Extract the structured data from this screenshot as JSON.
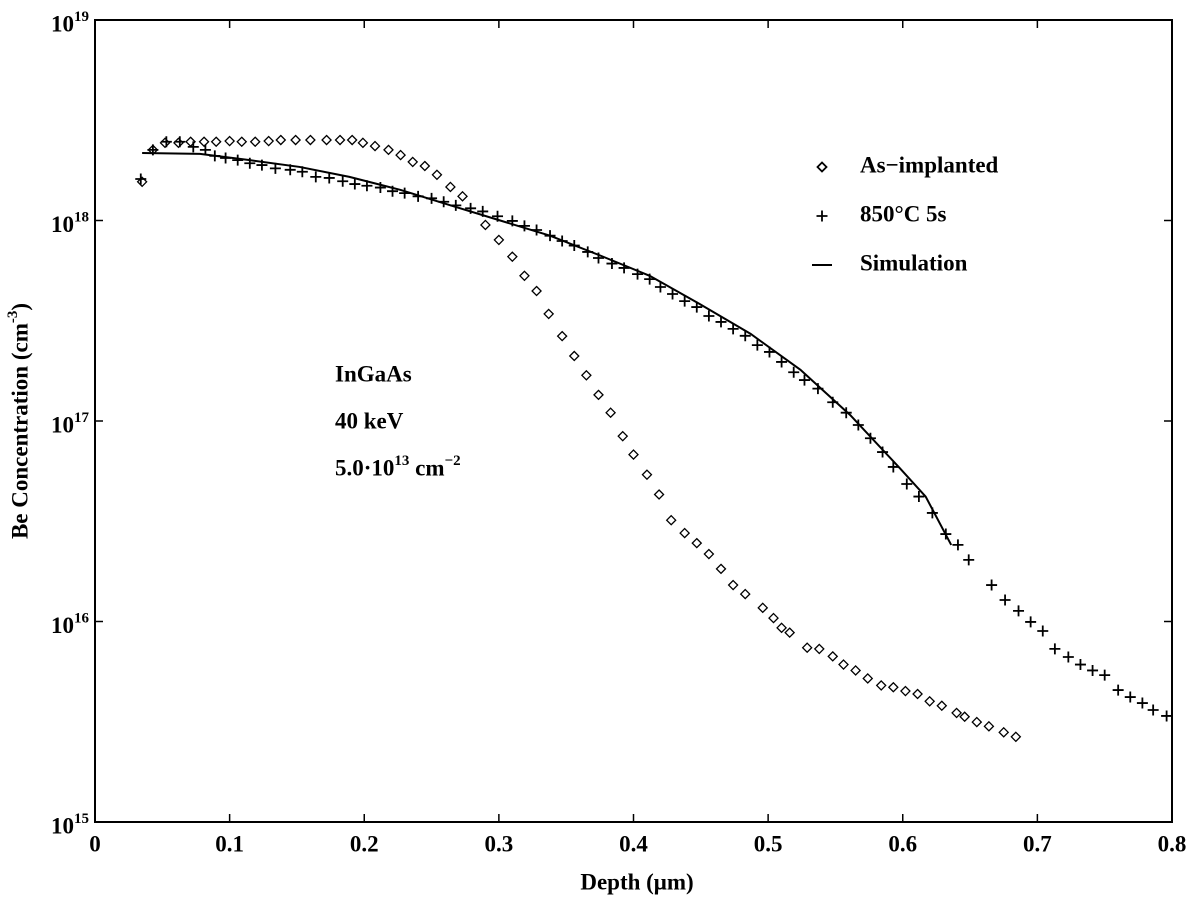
{
  "chart_data": {
    "type": "scatter",
    "xlabel": "Depth (μm)",
    "ylabel": "Be Concentration (cm^-3)",
    "xlim": [
      0,
      0.8
    ],
    "xticks": [
      0,
      0.1,
      0.2,
      0.3,
      0.4,
      0.5,
      0.6,
      0.7,
      0.8
    ],
    "ylim": [
      1000000000000000.0,
      1e+19
    ],
    "yscale": "log",
    "yticks": [
      {
        "value": 1000000000000000.0,
        "label": "10^15"
      },
      {
        "value": 1e+16,
        "label": "10^16"
      },
      {
        "value": 1e+17,
        "label": "10^17"
      },
      {
        "value": 1e+18,
        "label": "10^18"
      },
      {
        "value": 1e+19,
        "label": "10^19"
      }
    ],
    "grid": false,
    "legend": "upper right",
    "annotations": [
      "InGaAs",
      "40 keV",
      "5.0·10^13 cm^−2"
    ],
    "series": [
      {
        "name": "As−implanted",
        "color": "#000000",
        "marker": "diamond",
        "x": [
          0.035,
          0.043,
          0.052,
          0.062,
          0.071,
          0.081,
          0.09,
          0.1,
          0.109,
          0.119,
          0.129,
          0.138,
          0.149,
          0.16,
          0.172,
          0.182,
          0.191,
          0.199,
          0.208,
          0.218,
          0.227,
          0.236,
          0.245,
          0.254,
          0.264,
          0.273,
          0.29,
          0.3,
          0.31,
          0.319,
          0.328,
          0.337,
          0.347,
          0.356,
          0.365,
          0.374,
          0.383,
          0.392,
          0.4,
          0.41,
          0.419,
          0.428,
          0.438,
          0.447,
          0.456,
          0.465,
          0.474,
          0.483,
          0.496,
          0.504,
          0.51,
          0.516,
          0.529,
          0.538,
          0.548,
          0.556,
          0.565,
          0.574,
          0.584,
          0.593,
          0.602,
          0.611,
          0.62,
          0.629,
          0.64,
          0.646,
          0.655,
          0.664,
          0.675,
          0.684
        ],
        "values": [
          1.56e+18,
          2.25e+18,
          2.44e+18,
          2.44e+18,
          2.47e+18,
          2.47e+18,
          2.47e+18,
          2.49e+18,
          2.47e+18,
          2.47e+18,
          2.49e+18,
          2.52e+18,
          2.52e+18,
          2.52e+18,
          2.52e+18,
          2.52e+18,
          2.52e+18,
          2.44e+18,
          2.35e+18,
          2.25e+18,
          2.12e+18,
          1.96e+18,
          1.87e+18,
          1.69e+18,
          1.47e+18,
          1.32e+18,
          9.5e+17,
          8e+17,
          6.6e+17,
          5.3e+17,
          4.45e+17,
          3.42e+17,
          2.65e+17,
          2.11e+17,
          1.69e+17,
          1.35e+17,
          1.1e+17,
          8.4e+16,
          6.8e+16,
          5.4e+16,
          4.3e+16,
          3.2e+16,
          2.76e+16,
          2.46e+16,
          2.17e+16,
          1.83e+16,
          1.52e+16,
          1.37e+16,
          1.17e+16,
          1.04e+16,
          9300000000000000.0,
          8800000000000000.0,
          7400000000000000.0,
          7300000000000000.0,
          6700000000000000.0,
          6100000000000000.0,
          5700000000000000.0,
          5200000000000000.0,
          4800000000000000.0,
          4700000000000000.0,
          4500000000000000.0,
          4350000000000000.0,
          4000000000000000.0,
          3800000000000000.0,
          3500000000000000.0,
          3350000000000000.0,
          3150000000000000.0,
          3000000000000000.0,
          2800000000000000.0,
          2660000000000000.0
        ]
      },
      {
        "name": "850°C 5s",
        "color": "#000000",
        "marker": "plus",
        "x": [
          0.034,
          0.043,
          0.053,
          0.063,
          0.073,
          0.082,
          0.089,
          0.097,
          0.106,
          0.115,
          0.124,
          0.134,
          0.145,
          0.154,
          0.164,
          0.174,
          0.184,
          0.193,
          0.202,
          0.212,
          0.221,
          0.23,
          0.24,
          0.25,
          0.259,
          0.268,
          0.279,
          0.288,
          0.299,
          0.31,
          0.319,
          0.328,
          0.338,
          0.347,
          0.356,
          0.366,
          0.374,
          0.384,
          0.393,
          0.403,
          0.412,
          0.42,
          0.429,
          0.438,
          0.447,
          0.456,
          0.465,
          0.474,
          0.483,
          0.492,
          0.501,
          0.51,
          0.519,
          0.527,
          0.537,
          0.548,
          0.558,
          0.567,
          0.576,
          0.585,
          0.593,
          0.603,
          0.612,
          0.622,
          0.632,
          0.641,
          0.649,
          0.666,
          0.676,
          0.686,
          0.695,
          0.704,
          0.713,
          0.723,
          0.732,
          0.741,
          0.75,
          0.76,
          0.769,
          0.778,
          0.786,
          0.796
        ],
        "values": [
          1.61e+18,
          2.25e+18,
          2.47e+18,
          2.47e+18,
          2.33e+18,
          2.25e+18,
          2.1e+18,
          2.05e+18,
          2e+18,
          1.93e+18,
          1.89e+18,
          1.82e+18,
          1.79e+18,
          1.75e+18,
          1.65e+18,
          1.63e+18,
          1.57e+18,
          1.52e+18,
          1.49e+18,
          1.46e+18,
          1.4e+18,
          1.37e+18,
          1.32e+18,
          1.29e+18,
          1.24e+18,
          1.19e+18,
          1.15e+18,
          1.11e+18,
          1.05e+18,
          9.95e+17,
          9.4e+17,
          8.97e+17,
          8.4e+17,
          7.9e+17,
          7.5e+17,
          6.97e+17,
          6.5e+17,
          6.1e+17,
          5.8e+17,
          5.4e+17,
          5.1e+17,
          4.66e+17,
          4.3e+17,
          3.96e+17,
          3.7e+17,
          3.34e+17,
          3.12e+17,
          2.88e+17,
          2.66e+17,
          2.39e+17,
          2.21e+17,
          1.97e+17,
          1.75e+17,
          1.6e+17,
          1.45e+17,
          1.24e+17,
          1.1e+17,
          9.55e+16,
          8.2e+16,
          7e+16,
          5.9e+16,
          4.85e+16,
          4.2e+16,
          3.48e+16,
          2.73e+16,
          2.41e+16,
          2.03e+16,
          1.52e+16,
          1.28e+16,
          1.13e+16,
          9950000000000000.0,
          8970000000000000.0,
          7300000000000000.0,
          6650000000000000.0,
          6100000000000000.0,
          5700000000000000.0,
          5400000000000000.0,
          4550000000000000.0,
          4200000000000000.0,
          3920000000000000.0,
          3620000000000000.0,
          3380000000000000.0
        ]
      },
      {
        "name": "Simulation",
        "color": "#000000",
        "marker": "line",
        "x": [
          0.035,
          0.078,
          0.115,
          0.152,
          0.189,
          0.227,
          0.264,
          0.301,
          0.338,
          0.375,
          0.412,
          0.449,
          0.487,
          0.524,
          0.561,
          0.598,
          0.617,
          0.636
        ],
        "values": [
          2.17e+18,
          2.15e+18,
          2e+18,
          1.85e+18,
          1.65e+18,
          1.42e+18,
          1.19e+18,
          1e+18,
          8.4e+17,
          6.7e+17,
          5.3e+17,
          3.84e+17,
          2.72e+17,
          1.8e+17,
          1.07e+17,
          5.8e+16,
          4.2e+16,
          2.41e+16
        ]
      }
    ]
  }
}
